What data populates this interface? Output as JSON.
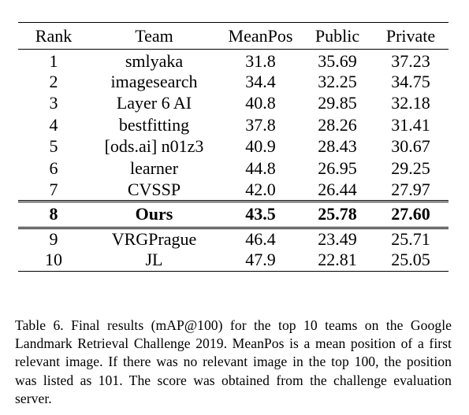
{
  "table": {
    "headers": [
      "Rank",
      "Team",
      "MeanPos",
      "Public",
      "Private"
    ],
    "rows": [
      [
        "1",
        "smlyaka",
        "31.8",
        "35.69",
        "37.23"
      ],
      [
        "2",
        "imagesearch",
        "34.4",
        "32.25",
        "34.75"
      ],
      [
        "3",
        "Layer 6 AI",
        "40.8",
        "29.85",
        "32.18"
      ],
      [
        "4",
        "bestfitting",
        "37.8",
        "28.26",
        "31.41"
      ],
      [
        "5",
        "[ods.ai] n01z3",
        "40.9",
        "28.43",
        "30.67"
      ],
      [
        "6",
        "learner",
        "44.8",
        "26.95",
        "29.25"
      ],
      [
        "7",
        "CVSSP",
        "42.0",
        "26.44",
        "27.97"
      ],
      [
        "8",
        "Ours",
        "43.5",
        "25.78",
        "27.60"
      ],
      [
        "9",
        "VRGPrague",
        "46.4",
        "23.49",
        "25.71"
      ],
      [
        "10",
        "JL",
        "47.9",
        "22.81",
        "25.05"
      ]
    ]
  },
  "caption": "Table 6. Final results (mAP@100) for the top 10 teams on the Google Landmark Retrieval Challenge 2019. MeanPos is a mean position of a first relevant image. If there was no relevant image in the top 100, the position was listed as 101. The score was obtained from the challenge evaluation server."
}
